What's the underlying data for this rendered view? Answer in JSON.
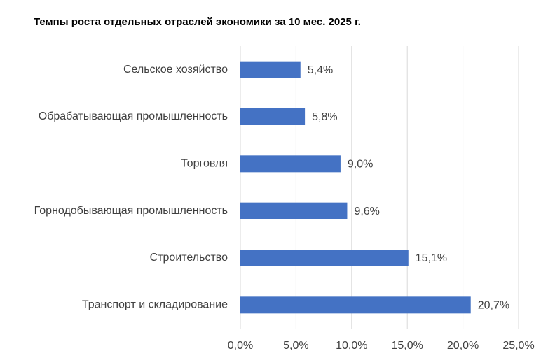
{
  "chart_data": {
    "type": "bar",
    "orientation": "horizontal",
    "title": "Темпы роста отдельных отраслей экономики за 10 мес. 2025 г.",
    "categories": [
      "Сельское хозяйство",
      "Обрабатывающая промышленность",
      "Торговля",
      "Горнодобывающая промышленность",
      "Строительство",
      "Транспорт и складирование"
    ],
    "values": [
      5.4,
      5.8,
      9.0,
      9.6,
      15.1,
      20.7
    ],
    "value_labels": [
      "5,4%",
      "5,8%",
      "9,0%",
      "9,6%",
      "15,1%",
      "20,7%"
    ],
    "color": "#4472c4",
    "xlim": [
      0,
      25
    ],
    "xticks": [
      {
        "value": 0,
        "label": "0,0%"
      },
      {
        "value": 5,
        "label": "5,0%"
      },
      {
        "value": 10,
        "label": "10,0%"
      },
      {
        "value": 15,
        "label": "15,0%"
      },
      {
        "value": 20,
        "label": "20,0%"
      },
      {
        "value": 25,
        "label": "25,0%"
      }
    ],
    "grid": true
  }
}
